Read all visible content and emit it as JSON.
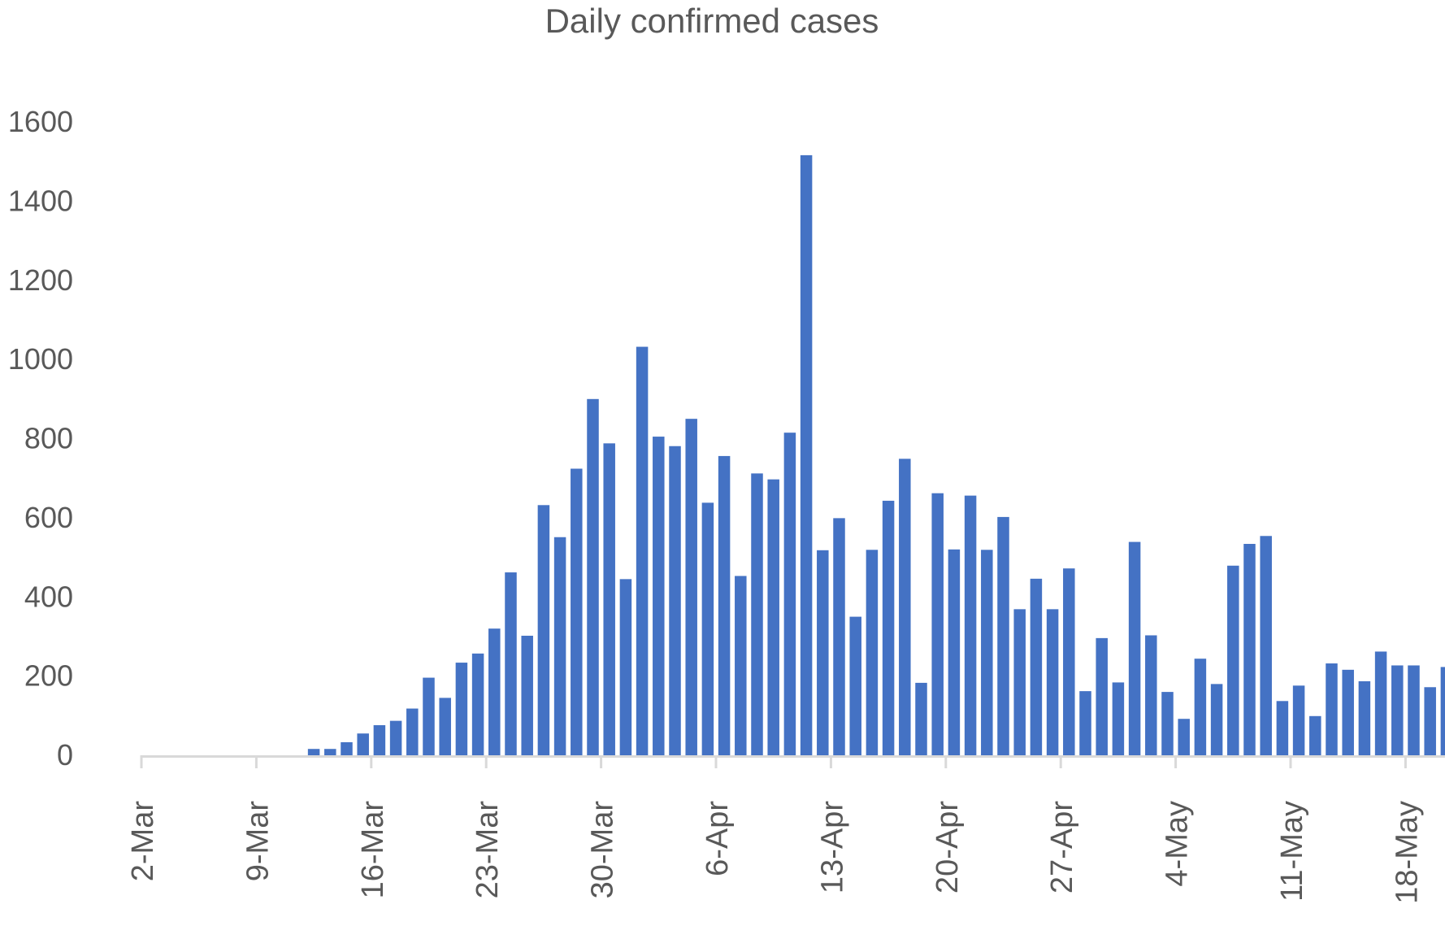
{
  "chart_data": {
    "type": "bar",
    "title": "Daily confirmed cases",
    "xlabel": "",
    "ylabel": "",
    "ylim": [
      0,
      1600
    ],
    "yticks": [
      0,
      200,
      400,
      600,
      800,
      1000,
      1200,
      1400,
      1600
    ],
    "grid": false,
    "legend": "none",
    "bar_color": "#4472C4",
    "axis_color": "#d9d9d9",
    "text_color": "#595959",
    "date_start": "2-Mar",
    "x_tick_labels": [
      "2-Mar",
      "9-Mar",
      "16-Mar",
      "23-Mar",
      "30-Mar",
      "6-Apr",
      "13-Apr",
      "20-Apr",
      "27-Apr",
      "4-May",
      "11-May",
      "18-May"
    ],
    "values": [
      0,
      0,
      0,
      0,
      0,
      0,
      0,
      0,
      0,
      0,
      16,
      16,
      33,
      55,
      76,
      87,
      118,
      196,
      145,
      234,
      257,
      320,
      462,
      302,
      632,
      551,
      724,
      900,
      788,
      445,
      1032,
      805,
      781,
      850,
      638,
      756,
      453,
      712,
      697,
      815,
      1516,
      518,
      599,
      350,
      519,
      643,
      749,
      183,
      662,
      520,
      656,
      519,
      602,
      369,
      446,
      369,
      472,
      162,
      296,
      184,
      539,
      303,
      160,
      92,
      244,
      180,
      479,
      534,
      554,
      137,
      176,
      99,
      232,
      216,
      187,
      262,
      227,
      227,
      172,
      223
    ]
  }
}
